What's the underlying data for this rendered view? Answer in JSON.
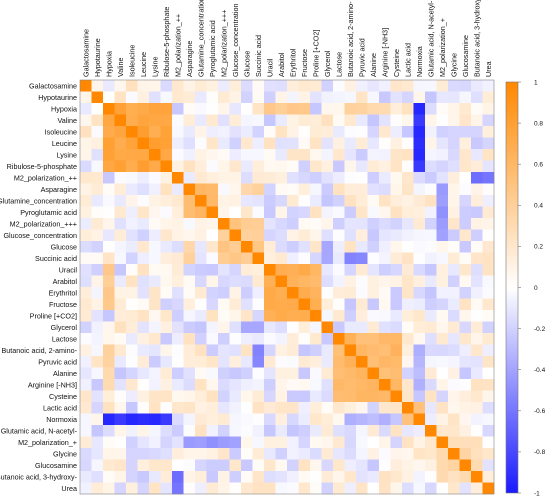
{
  "chart_data": {
    "type": "heatmap",
    "labels": [
      "Galactosamine",
      "Hypotaurine",
      "Hypoxia",
      "Valine",
      "Isoleucine",
      "Leucine",
      "Lysine",
      "Ribulose-5-phosphate",
      "M2_polarization_++",
      "Asparagine",
      "Glutamine_concentration",
      "Pyroglutamic acid",
      "M2_polarization_+++",
      "Glucose_concentration",
      "Glucose",
      "Succinic acid",
      "Uracil",
      "Arabitol",
      "Erythritol",
      "Fructose",
      "Proline [+CO2]",
      "Glycerol",
      "Lactose",
      "Butanoic acid, 2-amino-",
      "Pyruvic acid",
      "Alanine",
      "Arginine [-NH3]",
      "Cysteine",
      "Lactic acid",
      "Normoxia",
      "Glutamic acid, N-acetyl-",
      "M2_polarization_+",
      "Glycine",
      "Glucosamine",
      "Butanoic acid, 3-hydroxy-",
      "Urea"
    ],
    "color_scale": {
      "min": -1,
      "max": 1,
      "low_color": "#1a1aff",
      "mid_color": "#ffffff",
      "high_color": "#ff8800"
    },
    "colorbar_ticks": [
      1,
      0.8,
      0.6,
      0.4,
      0.2,
      0,
      -0.2,
      -0.4,
      -0.6,
      -0.8,
      -1
    ],
    "blocks": [
      {
        "members": [
          2,
          3,
          4,
          5,
          6,
          7
        ],
        "value": 0.75
      },
      {
        "members": [
          9,
          10,
          11
        ],
        "value": 0.55
      },
      {
        "members": [
          12,
          13,
          14,
          15
        ],
        "value": 0.45
      },
      {
        "members": [
          16,
          17,
          18,
          19,
          20
        ],
        "value": 0.65
      },
      {
        "members": [
          22,
          23,
          24,
          25,
          26,
          27
        ],
        "value": 0.6
      },
      {
        "members": [
          31,
          32,
          33,
          34
        ],
        "value": 0.3
      }
    ],
    "notable_pairs": [
      {
        "a": 29,
        "b": [
          2,
          3,
          4,
          5,
          6,
          7
        ],
        "value": -0.9
      },
      {
        "a": 29,
        "b": [
          23,
          24,
          25,
          26
        ],
        "value": -0.3
      },
      {
        "a": 31,
        "b": [
          9,
          10,
          11,
          12,
          13
        ],
        "value": -0.45
      },
      {
        "a": 8,
        "b": [
          34,
          35
        ],
        "value": -0.6
      },
      {
        "a": 2,
        "b": [
          16,
          17,
          18,
          19
        ],
        "value": 0.45
      },
      {
        "a": 2,
        "b": [
          23,
          24,
          25,
          26
        ],
        "value": 0.35
      },
      {
        "a": 9,
        "b": [
          14,
          15
        ],
        "value": 0.35
      },
      {
        "a": 28,
        "b": [
          29
        ],
        "value": 0.55
      },
      {
        "a": 15,
        "b": [
          23,
          24
        ],
        "value": -0.55
      },
      {
        "a": 21,
        "b": [
          14,
          15
        ],
        "value": -0.4
      }
    ]
  }
}
